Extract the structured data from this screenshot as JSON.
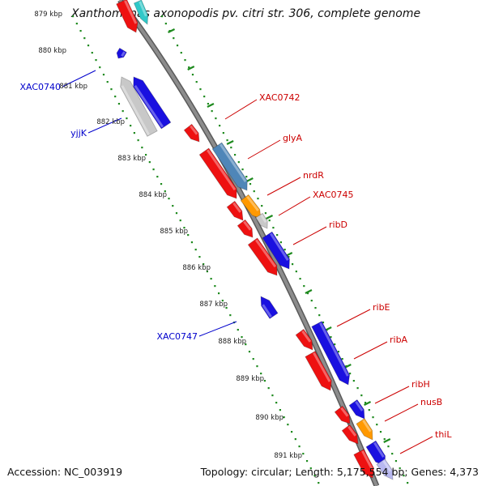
{
  "title": "Xanthomonas axonopodis pv. citri str. 306, complete genome",
  "footer": {
    "accession": "Accession: NC_003919",
    "topology": "Topology: circular; Length: 5,175,554 bp; Genes: 4,373"
  },
  "ticks": [
    "879 kbp",
    "880 kbp",
    "881 kbp",
    "882 kbp",
    "883 kbp",
    "884 kbp",
    "885 kbp",
    "886 kbp",
    "887 kbp",
    "888 kbp",
    "889 kbp",
    "890 kbp",
    "891 kbp"
  ],
  "colors": {
    "forward_cds": "#ee1111",
    "reverse_cds": "#1a10e0",
    "grey_feature": "#c8c8c8",
    "steelblue_feature": "#4f86b8",
    "orange_feature": "#ff9900",
    "backbone": "#8c8c8c",
    "tick_green": "#1e8a1e",
    "label_forward": "#cc0000",
    "label_reverse": "#0000cc"
  },
  "labels_forward": [
    "XAC0742",
    "glyA",
    "nrdR",
    "XAC0745",
    "ribD",
    "ribE",
    "ribA",
    "ribH",
    "nusB",
    "thiL"
  ],
  "labels_reverse": [
    "XAC0740",
    "yjjK",
    "XAC0747"
  ]
}
